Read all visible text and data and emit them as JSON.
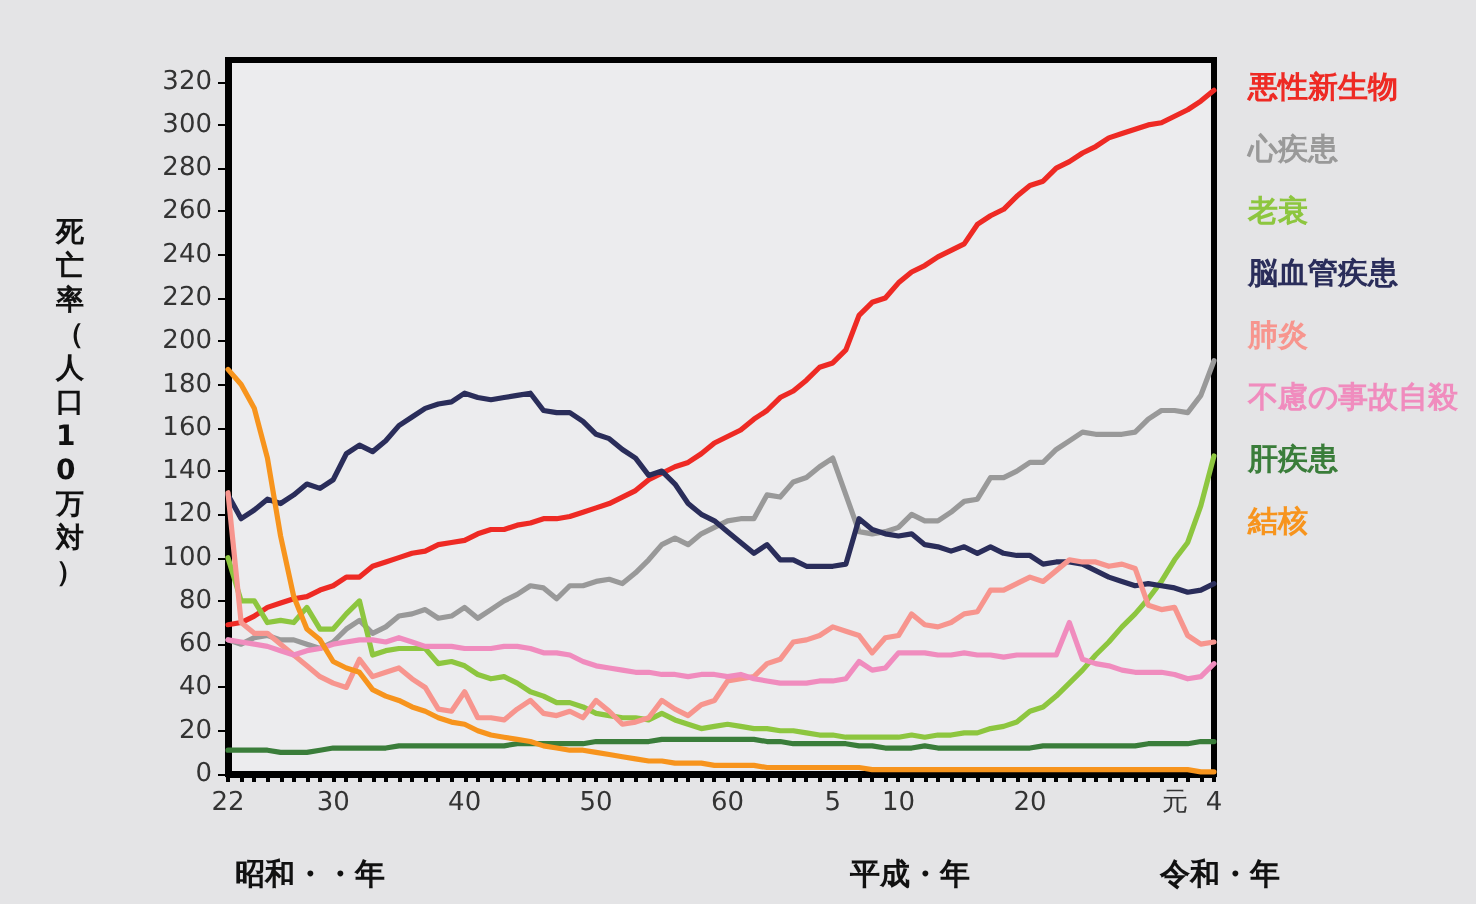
{
  "chart_data": {
    "type": "line",
    "ylabel": "死亡率（人口10万対）",
    "categories": [
      "22",
      null,
      null,
      null,
      null,
      null,
      null,
      null,
      "30",
      null,
      null,
      null,
      null,
      null,
      null,
      null,
      null,
      null,
      "40",
      null,
      null,
      null,
      null,
      null,
      null,
      null,
      null,
      null,
      "50",
      null,
      null,
      null,
      null,
      null,
      null,
      null,
      null,
      null,
      "60",
      null,
      null,
      null,
      null,
      null,
      null,
      null,
      "5",
      null,
      null,
      null,
      null,
      "10",
      null,
      null,
      null,
      null,
      null,
      null,
      null,
      null,
      null,
      "20",
      null,
      null,
      null,
      null,
      null,
      null,
      null,
      null,
      null,
      null,
      "元",
      null,
      null,
      "4"
    ],
    "ylim": [
      0,
      330
    ],
    "yticks": [
      0,
      20,
      40,
      60,
      80,
      100,
      120,
      140,
      160,
      180,
      200,
      220,
      240,
      260,
      280,
      300,
      320
    ],
    "grid": false,
    "legend": "right",
    "marker": "none",
    "line_style": "solid",
    "annotations": [
      "昭和・・年",
      "平成・年",
      "令和・年"
    ],
    "series": [
      {
        "name": "悪性新生物",
        "color": "#ee2a24",
        "values": [
          69,
          70,
          73,
          77,
          79,
          81,
          82,
          85,
          87,
          91,
          91,
          96,
          98,
          100,
          102,
          103,
          106,
          107,
          108,
          111,
          113,
          113,
          115,
          116,
          118,
          118,
          119,
          121,
          123,
          125,
          128,
          131,
          136,
          139,
          142,
          144,
          148,
          153,
          156,
          159,
          164,
          168,
          174,
          177,
          182,
          188,
          190,
          196,
          212,
          218,
          220,
          227,
          232,
          235,
          239,
          242,
          245,
          254,
          258,
          261,
          267,
          272,
          274,
          280,
          283,
          287,
          290,
          294,
          296,
          298,
          300,
          301,
          304,
          307,
          311,
          316
        ]
      },
      {
        "name": "心疾患",
        "color": "#999999",
        "values": [
          62,
          60,
          63,
          64,
          62,
          62,
          60,
          58,
          61,
          67,
          71,
          65,
          68,
          73,
          74,
          76,
          72,
          73,
          77,
          72,
          76,
          80,
          83,
          87,
          86,
          81,
          87,
          87,
          89,
          90,
          88,
          93,
          99,
          106,
          109,
          106,
          111,
          114,
          117,
          118,
          118,
          129,
          128,
          135,
          137,
          142,
          146,
          129,
          112,
          111,
          112,
          114,
          120,
          117,
          117,
          121,
          126,
          127,
          137,
          137,
          140,
          144,
          144,
          150,
          154,
          158,
          157,
          157,
          157,
          158,
          164,
          168,
          168,
          167,
          175,
          191
        ]
      },
      {
        "name": "老衰",
        "color": "#8dc63f",
        "values": [
          100,
          80,
          80,
          70,
          71,
          70,
          77,
          67,
          67,
          74,
          80,
          55,
          57,
          58,
          58,
          58,
          51,
          52,
          50,
          46,
          44,
          45,
          42,
          38,
          36,
          33,
          33,
          31,
          28,
          27,
          26,
          26,
          25,
          28,
          25,
          23,
          21,
          22,
          23,
          22,
          21,
          21,
          20,
          20,
          19,
          18,
          18,
          17,
          17,
          17,
          17,
          17,
          18,
          17,
          18,
          18,
          19,
          19,
          21,
          22,
          24,
          29,
          31,
          36,
          42,
          48,
          55,
          61,
          68,
          74,
          81,
          89,
          99,
          107,
          124,
          147
        ]
      },
      {
        "name": "脳血管疾患",
        "color": "#2a2d5a",
        "values": [
          129,
          118,
          122,
          127,
          125,
          129,
          134,
          132,
          136,
          148,
          152,
          149,
          154,
          161,
          165,
          169,
          171,
          172,
          176,
          174,
          173,
          174,
          175,
          176,
          168,
          167,
          167,
          163,
          157,
          155,
          150,
          146,
          138,
          140,
          134,
          125,
          120,
          117,
          112,
          107,
          102,
          106,
          99,
          99,
          96,
          96,
          96,
          97,
          118,
          113,
          111,
          110,
          111,
          106,
          105,
          103,
          105,
          102,
          105,
          102,
          101,
          101,
          97,
          98,
          98,
          97,
          94,
          91,
          89,
          87,
          88,
          87,
          86,
          84,
          85,
          88
        ]
      },
      {
        "name": "肺炎",
        "color": "#f7958e",
        "values": [
          130,
          70,
          65,
          65,
          60,
          55,
          50,
          45,
          42,
          40,
          53,
          45,
          47,
          49,
          44,
          40,
          30,
          29,
          38,
          26,
          26,
          25,
          30,
          34,
          28,
          27,
          29,
          26,
          34,
          29,
          23,
          24,
          26,
          34,
          30,
          27,
          32,
          34,
          43,
          44,
          45,
          51,
          53,
          61,
          62,
          64,
          68,
          66,
          64,
          56,
          63,
          64,
          74,
          69,
          68,
          70,
          74,
          75,
          85,
          85,
          88,
          91,
          89,
          94,
          99,
          98,
          98,
          96,
          97,
          95,
          78,
          76,
          77,
          64,
          60,
          61
        ]
      },
      {
        "name": "不慮の事故自殺",
        "color": "#f08cbe",
        "values": [
          62,
          61,
          60,
          59,
          57,
          55,
          57,
          58,
          60,
          61,
          62,
          62,
          61,
          63,
          61,
          59,
          59,
          59,
          58,
          58,
          58,
          59,
          59,
          58,
          56,
          56,
          55,
          52,
          50,
          49,
          48,
          47,
          47,
          46,
          46,
          45,
          46,
          46,
          45,
          46,
          44,
          43,
          42,
          42,
          42,
          43,
          43,
          44,
          52,
          48,
          49,
          56,
          56,
          56,
          55,
          55,
          56,
          55,
          55,
          54,
          55,
          55,
          55,
          55,
          70,
          53,
          51,
          50,
          48,
          47,
          47,
          47,
          46,
          44,
          45,
          51
        ]
      },
      {
        "name": "肝疾患",
        "color": "#3a7d3a",
        "values": [
          11,
          11,
          11,
          11,
          10,
          10,
          10,
          11,
          12,
          12,
          12,
          12,
          12,
          13,
          13,
          13,
          13,
          13,
          13,
          13,
          13,
          13,
          14,
          14,
          14,
          14,
          14,
          14,
          15,
          15,
          15,
          15,
          15,
          16,
          16,
          16,
          16,
          16,
          16,
          16,
          16,
          15,
          15,
          14,
          14,
          14,
          14,
          14,
          13,
          13,
          12,
          12,
          12,
          13,
          12,
          12,
          12,
          12,
          12,
          12,
          12,
          12,
          13,
          13,
          13,
          13,
          13,
          13,
          13,
          13,
          14,
          14,
          14,
          14,
          15,
          15
        ]
      },
      {
        "name": "結核",
        "color": "#f7941d",
        "values": [
          187,
          180,
          169,
          146,
          110,
          82,
          67,
          62,
          52,
          49,
          47,
          39,
          36,
          34,
          31,
          29,
          26,
          24,
          23,
          20,
          18,
          17,
          16,
          15,
          13,
          12,
          11,
          11,
          10,
          9,
          8,
          7,
          6,
          6,
          5,
          5,
          5,
          4,
          4,
          4,
          4,
          3,
          3,
          3,
          3,
          3,
          3,
          3,
          3,
          2,
          2,
          2,
          2,
          2,
          2,
          2,
          2,
          2,
          2,
          2,
          2,
          2,
          2,
          2,
          2,
          2,
          2,
          2,
          2,
          2,
          2,
          2,
          2,
          2,
          1,
          1
        ]
      }
    ]
  }
}
